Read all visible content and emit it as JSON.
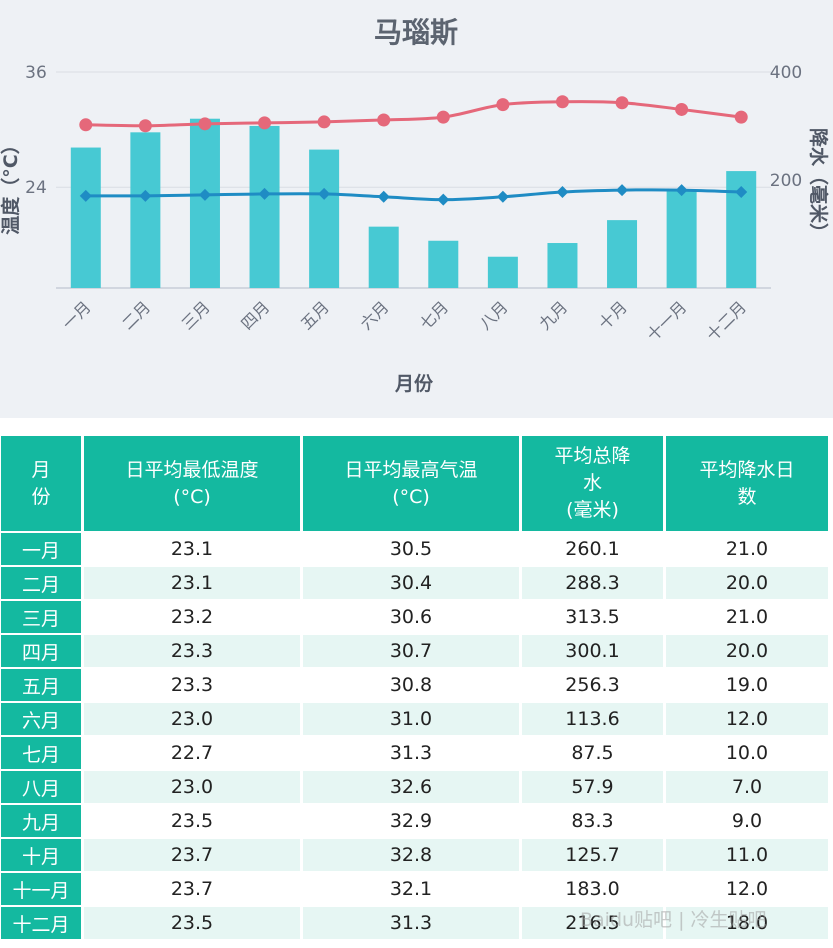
{
  "chart_data": {
    "type": "bar+line",
    "title": "马瑙斯",
    "xlabel": "月份",
    "ylabel_left": "温度（°C）",
    "ylabel_right": "降水（毫米）",
    "categories": [
      "一月",
      "二月",
      "三月",
      "四月",
      "五月",
      "六月",
      "七月",
      "八月",
      "九月",
      "十月",
      "十一月",
      "十二月"
    ],
    "left_ticks": [
      "36",
      "24"
    ],
    "right_ticks": [
      "400",
      "200"
    ],
    "left_range": [
      13.5,
      36
    ],
    "right_range": [
      0,
      400
    ],
    "series": [
      {
        "kind": "bar",
        "axis": "right",
        "color": "#47c9d3",
        "values": [
          260.1,
          288.3,
          313.5,
          300.1,
          256.3,
          113.6,
          87.5,
          57.9,
          83.3,
          125.7,
          183.0,
          216.5
        ]
      },
      {
        "kind": "line",
        "axis": "left",
        "color": "#e5687a",
        "marker": "circle",
        "values": [
          30.5,
          30.4,
          30.6,
          30.7,
          30.8,
          31.0,
          31.3,
          32.6,
          32.9,
          32.8,
          32.1,
          31.3
        ]
      },
      {
        "kind": "line",
        "axis": "left",
        "color": "#1f8cc4",
        "marker": "diamond",
        "values": [
          23.1,
          23.1,
          23.2,
          23.3,
          23.3,
          23.0,
          22.7,
          23.0,
          23.5,
          23.7,
          23.7,
          23.5
        ]
      }
    ]
  },
  "table": {
    "headers": [
      "月\n份",
      "日平均最低温度\n(°C)",
      "日平均最高气温\n(°C)",
      "平均总降\n水\n(毫米)",
      "平均降水日\n数"
    ],
    "rows": [
      [
        "一月",
        "23.1",
        "30.5",
        "260.1",
        "21.0"
      ],
      [
        "二月",
        "23.1",
        "30.4",
        "288.3",
        "20.0"
      ],
      [
        "三月",
        "23.2",
        "30.6",
        "313.5",
        "21.0"
      ],
      [
        "四月",
        "23.3",
        "30.7",
        "300.1",
        "20.0"
      ],
      [
        "五月",
        "23.3",
        "30.8",
        "256.3",
        "19.0"
      ],
      [
        "六月",
        "23.0",
        "31.0",
        "113.6",
        "12.0"
      ],
      [
        "七月",
        "22.7",
        "31.3",
        "87.5",
        "10.0"
      ],
      [
        "八月",
        "23.0",
        "32.6",
        "57.9",
        "7.0"
      ],
      [
        "九月",
        "23.5",
        "32.9",
        "83.3",
        "9.0"
      ],
      [
        "十月",
        "23.7",
        "32.8",
        "125.7",
        "11.0"
      ],
      [
        "十一月",
        "23.7",
        "32.1",
        "183.0",
        "12.0"
      ],
      [
        "十二月",
        "23.5",
        "31.3",
        "216.5",
        "18.0"
      ]
    ]
  },
  "watermark": "Baidu贴吧 | 冷生贴吧"
}
